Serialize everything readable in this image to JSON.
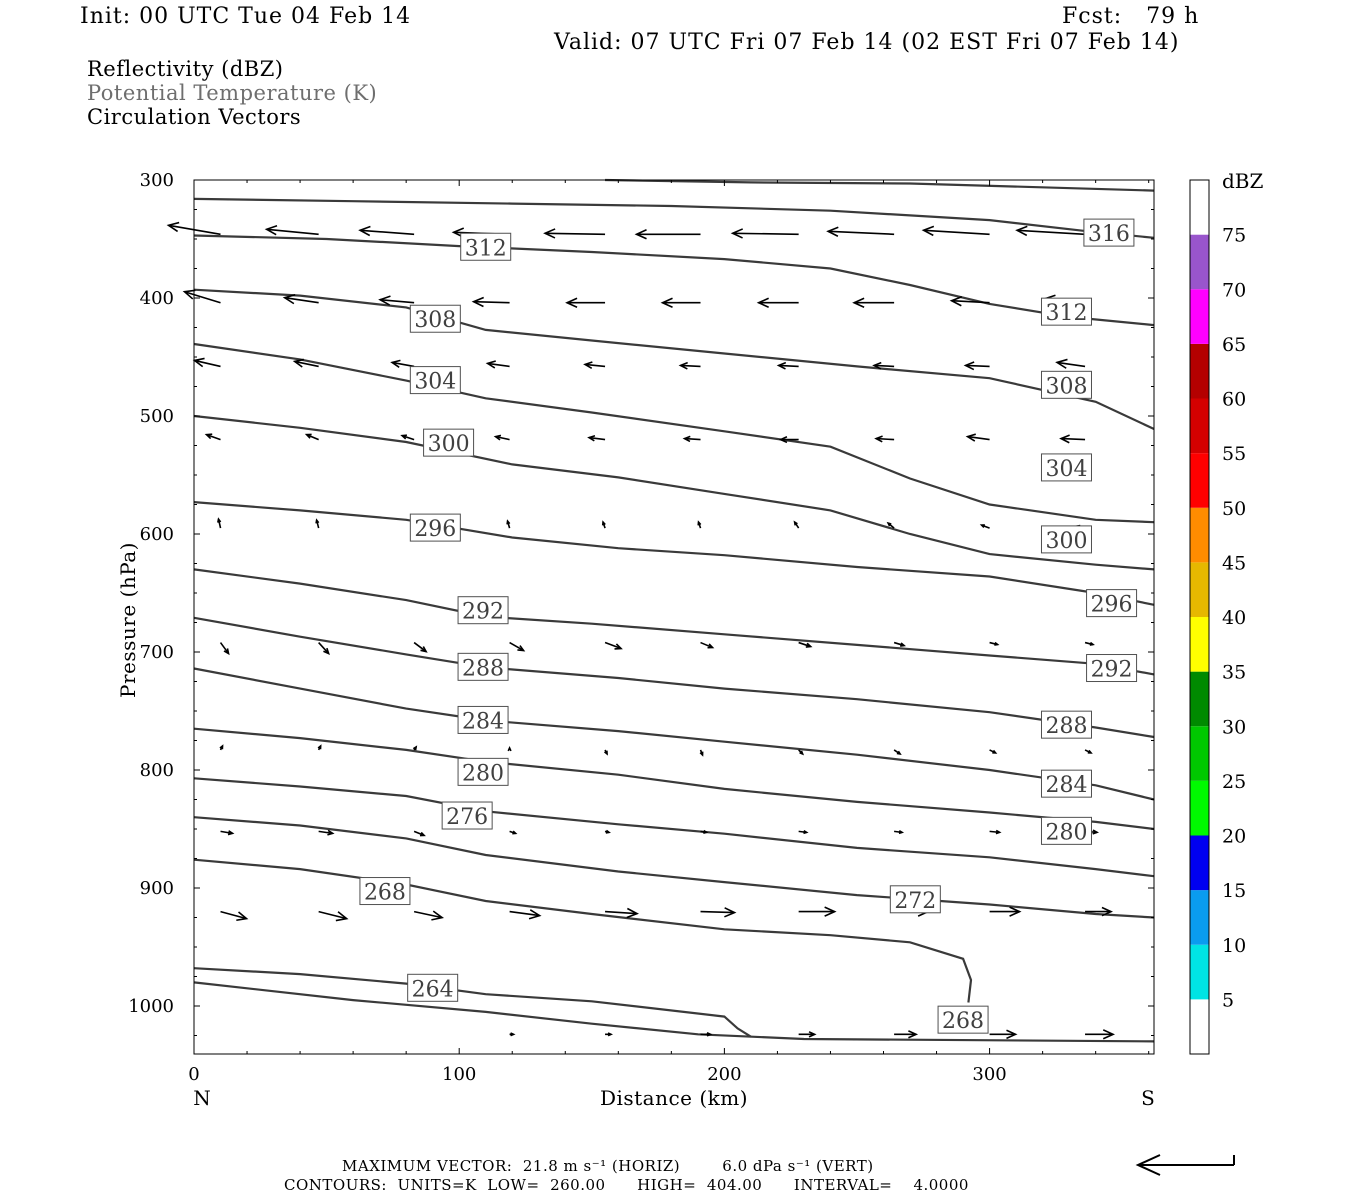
{
  "header": {
    "init": "Init: 00 UTC Tue 04 Feb 14",
    "fcst": "Fcst:   79 h",
    "valid": "Valid: 07 UTC Fri 07 Feb 14 (02 EST Fri 07 Feb 14)"
  },
  "fields": {
    "field1": "Reflectivity (dBZ)",
    "field2": "Potential Temperature (K)",
    "field3": "Circulation Vectors"
  },
  "footer": {
    "line1": "MAXIMUM VECTOR:  21.8 m s⁻¹ (HORIZ)        6.0 dPa s⁻¹ (VERT)",
    "line2": "CONTOURS:  UNITS=K  LOW=  260.00      HIGH=  404.00      INTERVAL=    4.0000"
  },
  "colors": {
    "contour": "#3a3a3a",
    "colorbar": [
      "#ffffff",
      "#00e4e4",
      "#0a9cef",
      "#0000f0",
      "#00fa00",
      "#00c800",
      "#008a00",
      "#ffff00",
      "#e6b800",
      "#ff8c00",
      "#ff0000",
      "#d40000",
      "#b40000",
      "#ff00ff",
      "#9955cc",
      "#ffffff"
    ]
  },
  "chart_data": {
    "type": "cross-section",
    "xlabel": "Distance (km)",
    "ylabel": "Pressure (hPa)",
    "x_range": [
      0,
      362
    ],
    "y_range": [
      300,
      1040
    ],
    "y_scale": "linear (inverted, pressure increasing downward)",
    "x_ticks": [
      "0",
      "100",
      "200",
      "300"
    ],
    "x_tick_values": [
      0,
      100,
      200,
      300
    ],
    "y_ticks": [
      "300",
      "400",
      "500",
      "600",
      "700",
      "800",
      "900",
      "1000"
    ],
    "y_tick_values": [
      300,
      400,
      500,
      600,
      700,
      800,
      900,
      1000
    ],
    "left_end_label": "N",
    "right_end_label": "S",
    "colorbar": {
      "title": "dBZ",
      "levels": [
        "5",
        "10",
        "15",
        "20",
        "25",
        "30",
        "35",
        "40",
        "45",
        "50",
        "55",
        "60",
        "65",
        "70",
        "75"
      ],
      "level_values": [
        5,
        10,
        15,
        20,
        25,
        30,
        35,
        40,
        45,
        50,
        55,
        60,
        65,
        70,
        75
      ],
      "range": [
        0,
        80
      ]
    },
    "contours": [
      {
        "theta": 316,
        "points": [
          [
            155,
            300
          ],
          [
            210,
            302
          ],
          [
            270,
            303
          ],
          [
            362,
            309
          ]
        ]
      },
      {
        "theta": 316,
        "label": "316",
        "points": [
          [
            0,
            316
          ],
          [
            60,
            318
          ],
          [
            120,
            320
          ],
          [
            180,
            322
          ],
          [
            240,
            326
          ],
          [
            300,
            334
          ],
          [
            335,
            343
          ],
          [
            362,
            349
          ]
        ]
      },
      {
        "theta": 312,
        "label": "312",
        "points": [
          [
            0,
            347
          ],
          [
            50,
            350
          ],
          [
            100,
            356
          ],
          [
            150,
            361
          ],
          [
            200,
            367
          ],
          [
            240,
            375
          ],
          [
            270,
            389
          ],
          [
            300,
            405
          ],
          [
            330,
            416
          ],
          [
            362,
            423
          ]
        ]
      },
      {
        "theta": 308,
        "label": "308",
        "points": [
          [
            0,
            393
          ],
          [
            40,
            398
          ],
          [
            80,
            408
          ],
          [
            110,
            427
          ],
          [
            150,
            436
          ],
          [
            200,
            447
          ],
          [
            250,
            458
          ],
          [
            300,
            468
          ],
          [
            340,
            488
          ],
          [
            362,
            511
          ]
        ]
      },
      {
        "theta": 304,
        "label": "304",
        "points": [
          [
            0,
            439
          ],
          [
            40,
            452
          ],
          [
            80,
            470
          ],
          [
            110,
            485
          ],
          [
            150,
            497
          ],
          [
            200,
            513
          ],
          [
            240,
            526
          ],
          [
            270,
            553
          ],
          [
            300,
            575
          ],
          [
            340,
            588
          ],
          [
            362,
            590
          ]
        ]
      },
      {
        "theta": 300,
        "label": "300",
        "points": [
          [
            0,
            500
          ],
          [
            40,
            510
          ],
          [
            80,
            522
          ],
          [
            120,
            541
          ],
          [
            160,
            552
          ],
          [
            200,
            566
          ],
          [
            240,
            580
          ],
          [
            270,
            600
          ],
          [
            300,
            617
          ],
          [
            340,
            626
          ],
          [
            362,
            630
          ]
        ]
      },
      {
        "theta": 296,
        "label": "296",
        "points": [
          [
            0,
            573
          ],
          [
            40,
            580
          ],
          [
            80,
            588
          ],
          [
            120,
            603
          ],
          [
            160,
            612
          ],
          [
            200,
            618
          ],
          [
            250,
            628
          ],
          [
            300,
            636
          ],
          [
            340,
            650
          ],
          [
            362,
            660
          ]
        ]
      },
      {
        "theta": 292,
        "label": "292",
        "points": [
          [
            0,
            630
          ],
          [
            40,
            642
          ],
          [
            80,
            656
          ],
          [
            110,
            670
          ],
          [
            150,
            676
          ],
          [
            200,
            685
          ],
          [
            250,
            694
          ],
          [
            300,
            703
          ],
          [
            340,
            710
          ],
          [
            362,
            719
          ]
        ]
      },
      {
        "theta": 288,
        "label": "288",
        "points": [
          [
            0,
            671
          ],
          [
            40,
            687
          ],
          [
            80,
            702
          ],
          [
            110,
            713
          ],
          [
            160,
            722
          ],
          [
            200,
            731
          ],
          [
            250,
            740
          ],
          [
            300,
            751
          ],
          [
            340,
            764
          ],
          [
            362,
            772
          ]
        ]
      },
      {
        "theta": 284,
        "label": "284",
        "points": [
          [
            0,
            714
          ],
          [
            40,
            731
          ],
          [
            80,
            748
          ],
          [
            110,
            758
          ],
          [
            160,
            767
          ],
          [
            200,
            776
          ],
          [
            250,
            787
          ],
          [
            300,
            800
          ],
          [
            340,
            813
          ],
          [
            362,
            825
          ]
        ]
      },
      {
        "theta": 280,
        "label": "280",
        "points": [
          [
            0,
            765
          ],
          [
            40,
            773
          ],
          [
            80,
            783
          ],
          [
            110,
            793
          ],
          [
            160,
            804
          ],
          [
            200,
            816
          ],
          [
            250,
            827
          ],
          [
            300,
            836
          ],
          [
            340,
            844
          ],
          [
            362,
            850
          ]
        ]
      },
      {
        "theta": 276,
        "label": "276",
        "points": [
          [
            0,
            807
          ],
          [
            40,
            814
          ],
          [
            80,
            822
          ],
          [
            110,
            835
          ],
          [
            160,
            846
          ],
          [
            200,
            854
          ],
          [
            250,
            866
          ],
          [
            300,
            874
          ],
          [
            340,
            884
          ],
          [
            362,
            890
          ]
        ]
      },
      {
        "theta": 272,
        "label": "272",
        "points": [
          [
            0,
            840
          ],
          [
            40,
            847
          ],
          [
            80,
            858
          ],
          [
            110,
            872
          ],
          [
            160,
            886
          ],
          [
            200,
            895
          ],
          [
            250,
            906
          ],
          [
            300,
            914
          ],
          [
            340,
            922
          ],
          [
            362,
            925
          ]
        ]
      },
      {
        "theta": 268,
        "label": "268",
        "points": [
          [
            0,
            876
          ],
          [
            40,
            884
          ],
          [
            80,
            897
          ],
          [
            110,
            911
          ],
          [
            150,
            922
          ],
          [
            200,
            935
          ],
          [
            240,
            940
          ],
          [
            270,
            946
          ],
          [
            290,
            960
          ],
          [
            293,
            978
          ],
          [
            292,
            997
          ]
        ]
      },
      {
        "theta": 264,
        "label": "264",
        "points": [
          [
            0,
            968
          ],
          [
            40,
            973
          ],
          [
            80,
            981
          ],
          [
            110,
            990
          ],
          [
            150,
            996
          ],
          [
            200,
            1009
          ],
          [
            205,
            1019
          ],
          [
            210,
            1026
          ]
        ]
      },
      {
        "theta": 268,
        "label": "268",
        "points": [
          [
            0,
            980
          ],
          [
            60,
            995
          ],
          [
            110,
            1005
          ],
          [
            150,
            1015
          ],
          [
            190,
            1024
          ],
          [
            230,
            1028
          ],
          [
            362,
            1030
          ]
        ]
      }
    ],
    "vectors": {
      "levels": [
        346,
        404,
        458,
        520,
        595,
        692,
        783,
        852,
        920,
        968,
        1024
      ],
      "x_positions": [
        10,
        47,
        83,
        119,
        155,
        191,
        228,
        264,
        300,
        336
      ],
      "rows": [
        [
          [
            -26,
            -9
          ],
          [
            -26,
            -5
          ],
          [
            -27,
            -4
          ],
          [
            -28,
            -2
          ],
          [
            -30,
            -1
          ],
          [
            -32,
            0
          ],
          [
            -33,
            -1
          ],
          [
            -33,
            -3
          ],
          [
            -33,
            -4
          ],
          [
            -34,
            -4
          ]
        ],
        [
          [
            -18,
            -11
          ],
          [
            -17,
            -5
          ],
          [
            -17,
            -3
          ],
          [
            -18,
            -1
          ],
          [
            -19,
            0
          ],
          [
            -19,
            0
          ],
          [
            -20,
            0
          ],
          [
            -20,
            0
          ],
          [
            -19,
            -2
          ],
          [
            -20,
            -4
          ]
        ],
        [
          [
            -13,
            -6
          ],
          [
            -12,
            -5
          ],
          [
            -11,
            -4
          ],
          [
            -11,
            -3
          ],
          [
            -10,
            -2
          ],
          [
            -10,
            -1
          ],
          [
            -10,
            -1
          ],
          [
            -10,
            -1
          ],
          [
            -12,
            -1
          ],
          [
            -14,
            -4
          ]
        ],
        [
          [
            -7,
            -5
          ],
          [
            -6,
            -5
          ],
          [
            -6,
            -4
          ],
          [
            -7,
            -3
          ],
          [
            -8,
            -2
          ],
          [
            -8,
            -1
          ],
          [
            -9,
            0
          ],
          [
            -9,
            -1
          ],
          [
            -11,
            -3
          ],
          [
            -12,
            -1
          ]
        ],
        [
          [
            -1,
            -9
          ],
          [
            -1,
            -8
          ],
          [
            -1,
            -8
          ],
          [
            -1,
            -7
          ],
          [
            -1,
            -6
          ],
          [
            -1,
            -6
          ],
          [
            -2,
            -6
          ],
          [
            -3,
            -5
          ],
          [
            -4,
            -3
          ],
          [
            -4,
            -2
          ]
        ],
        [
          [
            4,
            11
          ],
          [
            5,
            11
          ],
          [
            6,
            9
          ],
          [
            7,
            8
          ],
          [
            8,
            6
          ],
          [
            6,
            5
          ],
          [
            6,
            4
          ],
          [
            5,
            3
          ],
          [
            4,
            2
          ],
          [
            4,
            2
          ]
        ],
        [
          [
            1,
            -4
          ],
          [
            1,
            -4
          ],
          [
            1,
            -3
          ],
          [
            0,
            -2
          ],
          [
            1,
            4
          ],
          [
            1,
            5
          ],
          [
            2,
            4
          ],
          [
            3,
            4
          ],
          [
            3,
            3
          ],
          [
            3,
            3
          ]
        ],
        [
          [
            6,
            2
          ],
          [
            7,
            2
          ],
          [
            5,
            4
          ],
          [
            3,
            2
          ],
          [
            2,
            1
          ],
          [
            3,
            1
          ],
          [
            4,
            1
          ],
          [
            4,
            1
          ],
          [
            5,
            1
          ],
          [
            6,
            1
          ]
        ],
        [
          [
            13,
            7
          ],
          [
            14,
            7
          ],
          [
            14,
            6
          ],
          [
            15,
            4
          ],
          [
            16,
            2
          ],
          [
            17,
            1
          ],
          [
            18,
            0
          ],
          [
            17,
            0
          ],
          [
            15,
            0
          ],
          [
            13,
            0
          ]
        ],
        [
          [
            0,
            0
          ],
          [
            0,
            0
          ],
          [
            0,
            0
          ],
          [
            0,
            0
          ],
          [
            0,
            0
          ],
          [
            0,
            0
          ],
          [
            0,
            0
          ],
          [
            0,
            0
          ],
          [
            0,
            0
          ],
          [
            0,
            0
          ]
        ],
        [
          [
            0,
            0
          ],
          [
            0,
            0
          ],
          [
            0,
            0
          ],
          [
            2,
            0
          ],
          [
            3,
            0
          ],
          [
            5,
            0
          ],
          [
            8,
            0
          ],
          [
            11,
            0
          ],
          [
            13,
            0
          ],
          [
            14,
            0
          ]
        ]
      ]
    }
  }
}
